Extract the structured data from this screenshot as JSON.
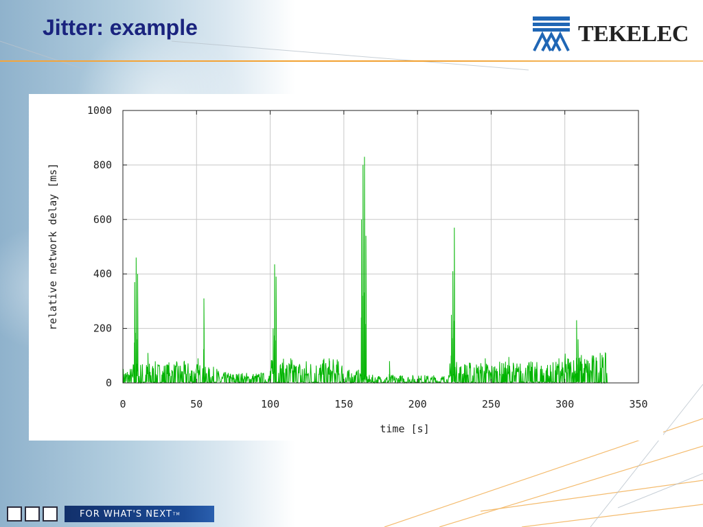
{
  "slide": {
    "title": "Jitter: example",
    "logo_text": "TEKELEC",
    "tagline": "FOR WHAT'S NEXT",
    "tagline_mark": "TM",
    "colors": {
      "title": "#1a237e",
      "rule": "#f1a02f",
      "logo_blue": "#1f66b5",
      "series": "#00b400"
    }
  },
  "chart_data": {
    "type": "line",
    "title": "",
    "xlabel": "time [s]",
    "ylabel": "relative network delay [ms]",
    "xlim": [
      0,
      350
    ],
    "ylim": [
      0,
      1000
    ],
    "xticks": [
      0,
      50,
      100,
      150,
      200,
      250,
      300,
      350
    ],
    "yticks": [
      0,
      200,
      400,
      600,
      800,
      1000
    ],
    "grid": true,
    "legend": "none",
    "series_color": "#00b400",
    "data_range": [
      0,
      329
    ],
    "baseline_noise": [
      {
        "from": 0,
        "to": 7,
        "max": 60
      },
      {
        "from": 7,
        "to": 53,
        "max": 80
      },
      {
        "from": 53,
        "to": 65,
        "max": 60
      },
      {
        "from": 65,
        "to": 100,
        "max": 40
      },
      {
        "from": 100,
        "to": 150,
        "max": 90
      },
      {
        "from": 150,
        "to": 162,
        "max": 50
      },
      {
        "from": 162,
        "to": 222,
        "max": 30
      },
      {
        "from": 222,
        "to": 300,
        "max": 80
      },
      {
        "from": 300,
        "to": 329,
        "max": 110
      }
    ],
    "spikes": [
      {
        "x": 8,
        "y": 370
      },
      {
        "x": 9,
        "y": 460
      },
      {
        "x": 10,
        "y": 400
      },
      {
        "x": 17,
        "y": 110
      },
      {
        "x": 51,
        "y": 90
      },
      {
        "x": 55,
        "y": 310
      },
      {
        "x": 102,
        "y": 200
      },
      {
        "x": 103,
        "y": 435
      },
      {
        "x": 104,
        "y": 390
      },
      {
        "x": 114,
        "y": 90
      },
      {
        "x": 140,
        "y": 90
      },
      {
        "x": 162,
        "y": 600
      },
      {
        "x": 163,
        "y": 800
      },
      {
        "x": 164,
        "y": 830
      },
      {
        "x": 165,
        "y": 540
      },
      {
        "x": 181,
        "y": 80
      },
      {
        "x": 223,
        "y": 250
      },
      {
        "x": 224,
        "y": 410
      },
      {
        "x": 225,
        "y": 570
      },
      {
        "x": 246,
        "y": 90
      },
      {
        "x": 262,
        "y": 95
      },
      {
        "x": 296,
        "y": 90
      },
      {
        "x": 308,
        "y": 230
      },
      {
        "x": 309,
        "y": 160
      },
      {
        "x": 324,
        "y": 110
      }
    ]
  }
}
